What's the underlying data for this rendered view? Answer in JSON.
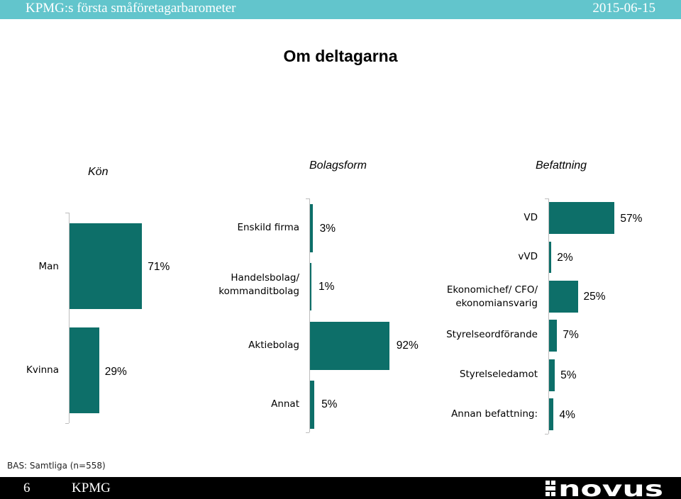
{
  "header": {
    "title": "KPMG:s första småföretagarbarometer",
    "date": "2015-06-15"
  },
  "page_title": "Om deltagarna",
  "footnote": "BAS: Samtliga (n=558)",
  "footer": {
    "page_number": "6",
    "brand": "KPMG",
    "logo_text": "novus"
  },
  "colors": {
    "bar": "#0d6f69",
    "header": "#62c5cc",
    "footer": "#000000"
  },
  "chart_data": [
    {
      "type": "bar",
      "orientation": "horizontal",
      "title": "Kön",
      "categories": [
        "Man",
        "Kvinna"
      ],
      "values": [
        71,
        29
      ],
      "labels": [
        "71%",
        "29%"
      ],
      "unit": "%"
    },
    {
      "type": "bar",
      "orientation": "horizontal",
      "title": "Bolagsform",
      "categories": [
        "Enskild firma",
        "Handelsbolag/\nkommanditbolag",
        "Aktiebolag",
        "Annat"
      ],
      "values": [
        3,
        1,
        92,
        5
      ],
      "labels": [
        "3%",
        "1%",
        "92%",
        "5%"
      ],
      "unit": "%"
    },
    {
      "type": "bar",
      "orientation": "horizontal",
      "title": "Befattning",
      "categories": [
        "VD",
        "vVD",
        "Ekonomichef/ CFO/\nekonomiansvarig",
        "Styrelseordförande",
        "Styrelseledamot",
        "Annan befattning:"
      ],
      "values": [
        57,
        2,
        25,
        7,
        5,
        4
      ],
      "labels": [
        "57%",
        "2%",
        "25%",
        "7%",
        "5%",
        "4%"
      ],
      "unit": "%"
    }
  ]
}
